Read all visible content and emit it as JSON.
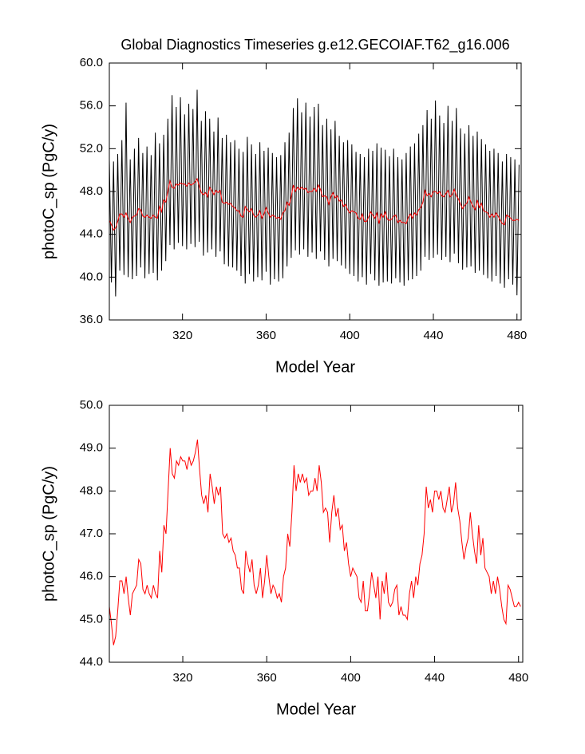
{
  "chart_data": [
    {
      "type": "line",
      "title": "Global Diagnostics Timeseries g.e12.GECOIAF.T62_g16.006",
      "xlabel": "Model Year",
      "ylabel": "photoC_sp (PgC/y)",
      "x": [
        285,
        286,
        287,
        288,
        289,
        290,
        291,
        292,
        293,
        294,
        295,
        296,
        297,
        298,
        299,
        300,
        301,
        302,
        303,
        304,
        305,
        306,
        307,
        308,
        309,
        310,
        311,
        312,
        313,
        314,
        315,
        316,
        317,
        318,
        319,
        320,
        321,
        322,
        323,
        324,
        325,
        326,
        327,
        328,
        329,
        330,
        331,
        332,
        333,
        334,
        335,
        336,
        337,
        338,
        339,
        340,
        341,
        342,
        343,
        344,
        345,
        346,
        347,
        348,
        349,
        350,
        351,
        352,
        353,
        354,
        355,
        356,
        357,
        358,
        359,
        360,
        361,
        362,
        363,
        364,
        365,
        366,
        367,
        368,
        369,
        370,
        371,
        372,
        373,
        374,
        375,
        376,
        377,
        378,
        379,
        380,
        381,
        382,
        383,
        384,
        385,
        386,
        387,
        388,
        389,
        390,
        391,
        392,
        393,
        394,
        395,
        396,
        397,
        398,
        399,
        400,
        401,
        402,
        403,
        404,
        405,
        406,
        407,
        408,
        409,
        410,
        411,
        412,
        413,
        414,
        415,
        416,
        417,
        418,
        419,
        420,
        421,
        422,
        423,
        424,
        425,
        426,
        427,
        428,
        429,
        430,
        431,
        432,
        433,
        434,
        435,
        436,
        437,
        438,
        439,
        440,
        441,
        442,
        443,
        444,
        445,
        446,
        447,
        448,
        449,
        450,
        451,
        452,
        453,
        454,
        455,
        456,
        457,
        458,
        459,
        460,
        461,
        462,
        463,
        464,
        465,
        466,
        467,
        468,
        469,
        470,
        471,
        472,
        473,
        474,
        475,
        476,
        477,
        478,
        479,
        480,
        481
      ],
      "series": [
        {
          "color": "#000000",
          "values": [
            51.0,
            39.5,
            50.8,
            38.2,
            51.5,
            40.6,
            52.8,
            40.2,
            56.3,
            40.0,
            51.0,
            39.8,
            52.0,
            40.1,
            53.0,
            40.9,
            51.6,
            39.9,
            52.2,
            40.3,
            51.4,
            40.4,
            53.5,
            39.7,
            52.5,
            40.6,
            53.3,
            41.5,
            54.8,
            43.0,
            57.0,
            42.6,
            55.9,
            43.2,
            56.8,
            42.9,
            55.2,
            42.6,
            56.2,
            43.1,
            55.7,
            42.8,
            57.5,
            43.3,
            54.6,
            42.0,
            55.5,
            42.3,
            54.8,
            42.6,
            53.6,
            41.9,
            54.9,
            42.4,
            53.0,
            41.2,
            53.3,
            41.0,
            52.6,
            40.9,
            52.8,
            40.6,
            52.0,
            40.1,
            51.7,
            39.4,
            53.1,
            40.3,
            52.4,
            39.6,
            51.5,
            40.0,
            52.6,
            39.7,
            51.8,
            40.5,
            52.1,
            39.3,
            51.6,
            39.8,
            51.2,
            39.6,
            51.4,
            39.9,
            52.6,
            41.0,
            53.5,
            41.8,
            55.8,
            42.5,
            56.7,
            42.1,
            55.4,
            42.6,
            56.3,
            41.9,
            55.0,
            42.3,
            55.9,
            41.7,
            56.2,
            42.4,
            54.2,
            41.6,
            54.8,
            41.0,
            53.8,
            41.7,
            54.6,
            41.5,
            53.2,
            41.1,
            52.6,
            40.8,
            52.8,
            40.3,
            52.4,
            40.1,
            51.7,
            39.6,
            51.5,
            40.0,
            51.2,
            39.3,
            52.0,
            40.3,
            51.8,
            39.7,
            52.5,
            39.2,
            52.1,
            39.5,
            51.9,
            39.6,
            51.3,
            39.4,
            52.0,
            39.9,
            51.2,
            39.5,
            51.0,
            39.2,
            51.6,
            39.7,
            52.2,
            39.8,
            52.5,
            40.1,
            53.4,
            40.6,
            54.2,
            41.9,
            55.6,
            41.6,
            54.8,
            41.8,
            56.5,
            42.1,
            55.1,
            41.6,
            54.4,
            41.9,
            56.0,
            41.4,
            54.6,
            42.2,
            55.8,
            41.3,
            53.9,
            40.7,
            53.4,
            40.9,
            54.2,
            41.0,
            53.2,
            40.4,
            53.6,
            40.6,
            52.9,
            40.2,
            52.4,
            39.9,
            51.8,
            39.6,
            52.0,
            40.1,
            51.6,
            39.4,
            50.8,
            39.0,
            51.5,
            39.8,
            51.2,
            39.3,
            51.0,
            38.3,
            50.5
          ]
        },
        {
          "color": "#ff0000",
          "values": [
            45.3,
            44.9,
            44.4,
            44.6,
            45.2,
            45.9,
            45.9,
            45.6,
            46.0,
            45.5,
            45.1,
            45.6,
            45.7,
            45.8,
            46.4,
            46.3,
            45.7,
            45.6,
            45.8,
            45.6,
            45.5,
            45.8,
            45.6,
            45.5,
            46.6,
            46.1,
            47.2,
            47.0,
            48.0,
            49.0,
            48.4,
            48.3,
            48.7,
            48.6,
            48.8,
            48.7,
            48.7,
            48.5,
            48.8,
            48.6,
            48.7,
            48.9,
            49.2,
            48.5,
            47.9,
            47.7,
            47.9,
            47.5,
            48.4,
            48.1,
            47.7,
            48.1,
            47.9,
            48.1,
            47.0,
            46.9,
            47.0,
            46.8,
            46.9,
            46.6,
            46.5,
            46.2,
            46.2,
            45.7,
            45.6,
            46.6,
            46.3,
            46.1,
            46.4,
            45.8,
            45.6,
            45.8,
            46.2,
            45.5,
            45.9,
            46.5,
            46.0,
            45.6,
            45.8,
            45.7,
            45.5,
            45.6,
            45.4,
            46.0,
            46.2,
            47.0,
            46.7,
            47.5,
            48.6,
            48.0,
            48.4,
            48.2,
            48.4,
            48.2,
            48.3,
            47.9,
            48.0,
            48.0,
            48.3,
            48.0,
            48.6,
            48.2,
            47.5,
            47.6,
            47.5,
            46.8,
            47.5,
            47.9,
            47.4,
            47.6,
            47.1,
            47.2,
            46.6,
            46.8,
            46.3,
            46.0,
            46.2,
            46.1,
            46.0,
            45.5,
            45.4,
            45.9,
            45.2,
            45.2,
            45.6,
            46.1,
            45.8,
            45.5,
            46.0,
            45.0,
            45.9,
            45.6,
            46.1,
            45.4,
            45.3,
            45.4,
            45.7,
            45.8,
            45.1,
            45.3,
            45.1,
            45.1,
            45.0,
            45.6,
            45.9,
            45.5,
            46.0,
            45.8,
            46.3,
            46.5,
            47.0,
            48.1,
            47.6,
            47.8,
            47.5,
            48.0,
            48.0,
            47.8,
            48.0,
            47.6,
            47.5,
            47.8,
            48.1,
            47.5,
            47.7,
            48.2,
            47.6,
            47.3,
            46.8,
            46.4,
            46.7,
            46.9,
            47.5,
            47.0,
            46.6,
            46.3,
            47.2,
            46.5,
            46.9,
            46.2,
            46.1,
            46.0,
            45.6,
            45.9,
            45.6,
            46.0,
            45.7,
            45.3,
            45.0,
            44.9,
            45.8,
            45.7,
            45.5,
            45.3,
            45.3,
            45.4,
            45.3
          ]
        }
      ],
      "xlim": [
        285,
        482
      ],
      "ylim": [
        36,
        60
      ],
      "xticks": [
        320,
        360,
        400,
        440,
        480
      ],
      "yticks": [
        {
          "value": 36,
          "label": "36.0"
        },
        {
          "value": 40,
          "label": "40.0"
        },
        {
          "value": 44,
          "label": "44.0"
        },
        {
          "value": 48,
          "label": "48.0"
        },
        {
          "value": 52,
          "label": "52.0"
        },
        {
          "value": 56,
          "label": "56.0"
        },
        {
          "value": 60,
          "label": "60.0"
        }
      ]
    },
    {
      "type": "line",
      "xlabel": "Model Year",
      "ylabel": "photoC_sp (PgC/y)",
      "x": [
        285,
        286,
        287,
        288,
        289,
        290,
        291,
        292,
        293,
        294,
        295,
        296,
        297,
        298,
        299,
        300,
        301,
        302,
        303,
        304,
        305,
        306,
        307,
        308,
        309,
        310,
        311,
        312,
        313,
        314,
        315,
        316,
        317,
        318,
        319,
        320,
        321,
        322,
        323,
        324,
        325,
        326,
        327,
        328,
        329,
        330,
        331,
        332,
        333,
        334,
        335,
        336,
        337,
        338,
        339,
        340,
        341,
        342,
        343,
        344,
        345,
        346,
        347,
        348,
        349,
        350,
        351,
        352,
        353,
        354,
        355,
        356,
        357,
        358,
        359,
        360,
        361,
        362,
        363,
        364,
        365,
        366,
        367,
        368,
        369,
        370,
        371,
        372,
        373,
        374,
        375,
        376,
        377,
        378,
        379,
        380,
        381,
        382,
        383,
        384,
        385,
        386,
        387,
        388,
        389,
        390,
        391,
        392,
        393,
        394,
        395,
        396,
        397,
        398,
        399,
        400,
        401,
        402,
        403,
        404,
        405,
        406,
        407,
        408,
        409,
        410,
        411,
        412,
        413,
        414,
        415,
        416,
        417,
        418,
        419,
        420,
        421,
        422,
        423,
        424,
        425,
        426,
        427,
        428,
        429,
        430,
        431,
        432,
        433,
        434,
        435,
        436,
        437,
        438,
        439,
        440,
        441,
        442,
        443,
        444,
        445,
        446,
        447,
        448,
        449,
        450,
        451,
        452,
        453,
        454,
        455,
        456,
        457,
        458,
        459,
        460,
        461,
        462,
        463,
        464,
        465,
        466,
        467,
        468,
        469,
        470,
        471,
        472,
        473,
        474,
        475,
        476,
        477,
        478,
        479,
        480,
        481
      ],
      "series": [
        {
          "color": "#ff0000",
          "values": [
            45.3,
            44.9,
            44.4,
            44.6,
            45.2,
            45.9,
            45.9,
            45.6,
            46.0,
            45.5,
            45.1,
            45.6,
            45.7,
            45.8,
            46.4,
            46.3,
            45.7,
            45.6,
            45.8,
            45.6,
            45.5,
            45.8,
            45.6,
            45.5,
            46.6,
            46.1,
            47.2,
            47.0,
            48.0,
            49.0,
            48.4,
            48.3,
            48.7,
            48.6,
            48.8,
            48.7,
            48.7,
            48.5,
            48.8,
            48.6,
            48.7,
            48.9,
            49.2,
            48.5,
            47.9,
            47.7,
            47.9,
            47.5,
            48.4,
            48.1,
            47.7,
            48.1,
            47.9,
            48.1,
            47.0,
            46.9,
            47.0,
            46.8,
            46.9,
            46.6,
            46.5,
            46.2,
            46.2,
            45.7,
            45.6,
            46.6,
            46.3,
            46.1,
            46.4,
            45.8,
            45.6,
            45.8,
            46.2,
            45.5,
            45.9,
            46.5,
            46.0,
            45.6,
            45.8,
            45.7,
            45.5,
            45.6,
            45.4,
            46.0,
            46.2,
            47.0,
            46.7,
            47.5,
            48.6,
            48.0,
            48.4,
            48.2,
            48.4,
            48.2,
            48.3,
            47.9,
            48.0,
            48.0,
            48.3,
            48.0,
            48.6,
            48.2,
            47.5,
            47.6,
            47.5,
            46.8,
            47.5,
            47.9,
            47.4,
            47.6,
            47.1,
            47.2,
            46.6,
            46.8,
            46.3,
            46.0,
            46.2,
            46.1,
            46.0,
            45.5,
            45.4,
            45.9,
            45.2,
            45.2,
            45.6,
            46.1,
            45.8,
            45.5,
            46.0,
            45.0,
            45.9,
            45.6,
            46.1,
            45.4,
            45.3,
            45.4,
            45.7,
            45.8,
            45.1,
            45.3,
            45.1,
            45.1,
            45.0,
            45.6,
            45.9,
            45.5,
            46.0,
            45.8,
            46.3,
            46.5,
            47.0,
            48.1,
            47.6,
            47.8,
            47.5,
            48.0,
            48.0,
            47.8,
            48.0,
            47.6,
            47.5,
            47.8,
            48.1,
            47.5,
            47.7,
            48.2,
            47.6,
            47.3,
            46.8,
            46.4,
            46.7,
            46.9,
            47.5,
            47.0,
            46.6,
            46.3,
            47.2,
            46.5,
            46.9,
            46.2,
            46.1,
            46.0,
            45.6,
            45.9,
            45.6,
            46.0,
            45.7,
            45.3,
            45.0,
            44.9,
            45.8,
            45.7,
            45.5,
            45.3,
            45.3,
            45.4,
            45.3
          ]
        }
      ],
      "xlim": [
        285,
        482
      ],
      "ylim": [
        44,
        50
      ],
      "xticks": [
        320,
        360,
        400,
        440,
        480
      ],
      "yticks": [
        {
          "value": 44,
          "label": "44.0"
        },
        {
          "value": 45,
          "label": "45.0"
        },
        {
          "value": 46,
          "label": "46.0"
        },
        {
          "value": 47,
          "label": "47.0"
        },
        {
          "value": 48,
          "label": "48.0"
        },
        {
          "value": 49,
          "label": "49.0"
        },
        {
          "value": 50,
          "label": "50.0"
        }
      ]
    }
  ]
}
